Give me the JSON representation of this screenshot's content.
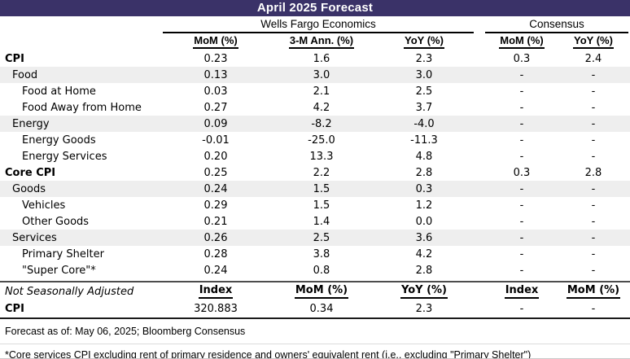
{
  "title": "April 2025 Forecast",
  "groups": {
    "wells_fargo": "Wells Fargo Economics",
    "consensus": "Consensus"
  },
  "table": {
    "sa_headers": [
      "MoM (%)",
      "3-M Ann. (%)",
      "YoY (%)",
      "MoM (%)",
      "YoY (%)"
    ],
    "rows": [
      {
        "label": "CPI",
        "level": 0,
        "bold": true,
        "stripe": false,
        "values": [
          "0.23",
          "1.6",
          "2.3",
          "0.3",
          "2.4"
        ]
      },
      {
        "label": "Food",
        "level": 1,
        "bold": false,
        "stripe": true,
        "values": [
          "0.13",
          "3.0",
          "3.0",
          "-",
          "-"
        ]
      },
      {
        "label": "Food at Home",
        "level": 2,
        "bold": false,
        "stripe": false,
        "values": [
          "0.03",
          "2.1",
          "2.5",
          "-",
          "-"
        ]
      },
      {
        "label": "Food Away from Home",
        "level": 2,
        "bold": false,
        "stripe": false,
        "values": [
          "0.27",
          "4.2",
          "3.7",
          "-",
          "-"
        ]
      },
      {
        "label": "Energy",
        "level": 1,
        "bold": false,
        "stripe": true,
        "values": [
          "0.09",
          "-8.2",
          "-4.0",
          "-",
          "-"
        ]
      },
      {
        "label": "Energy Goods",
        "level": 2,
        "bold": false,
        "stripe": false,
        "values": [
          "-0.01",
          "-25.0",
          "-11.3",
          "-",
          "-"
        ]
      },
      {
        "label": "Energy Services",
        "level": 2,
        "bold": false,
        "stripe": false,
        "values": [
          "0.20",
          "13.3",
          "4.8",
          "-",
          "-"
        ]
      },
      {
        "label": "Core CPI",
        "level": 0,
        "bold": true,
        "stripe": false,
        "values": [
          "0.25",
          "2.2",
          "2.8",
          "0.3",
          "2.8"
        ]
      },
      {
        "label": "Goods",
        "level": 1,
        "bold": false,
        "stripe": true,
        "values": [
          "0.24",
          "1.5",
          "0.3",
          "-",
          "-"
        ]
      },
      {
        "label": "Vehicles",
        "level": 2,
        "bold": false,
        "stripe": false,
        "values": [
          "0.29",
          "1.5",
          "1.2",
          "-",
          "-"
        ]
      },
      {
        "label": "Other Goods",
        "level": 2,
        "bold": false,
        "stripe": false,
        "values": [
          "0.21",
          "1.4",
          "0.0",
          "-",
          "-"
        ]
      },
      {
        "label": "Services",
        "level": 1,
        "bold": false,
        "stripe": true,
        "values": [
          "0.26",
          "2.5",
          "3.6",
          "-",
          "-"
        ]
      },
      {
        "label": "Primary Shelter",
        "level": 2,
        "bold": false,
        "stripe": false,
        "values": [
          "0.28",
          "3.8",
          "4.2",
          "-",
          "-"
        ]
      },
      {
        "label": "\"Super Core\"*",
        "level": 2,
        "bold": false,
        "stripe": false,
        "values": [
          "0.24",
          "0.8",
          "2.8",
          "-",
          "-"
        ]
      }
    ]
  },
  "nsa": {
    "section_label": "Not Seasonally Adjusted",
    "headers": [
      "Index",
      "MoM (%)",
      "YoY (%)",
      "Index",
      "MoM (%)"
    ],
    "rows": [
      {
        "label": "CPI",
        "values": [
          "320.883",
          "0.34",
          "2.3",
          "-",
          "-"
        ]
      }
    ]
  },
  "footer": {
    "forecast_note": "Forecast as of: May 06, 2025; Bloomberg Consensus",
    "footnote": "*Core services CPI excluding rent of primary residence and owners' equivalent rent (i.e., excluding \"Primary Shelter\")"
  },
  "colors": {
    "title_bg": "#3a3268",
    "title_text": "#ffffff",
    "stripe": "#eeeeee",
    "rule_dark": "#4d4d4d",
    "rule_black": "#1a1a1a"
  }
}
